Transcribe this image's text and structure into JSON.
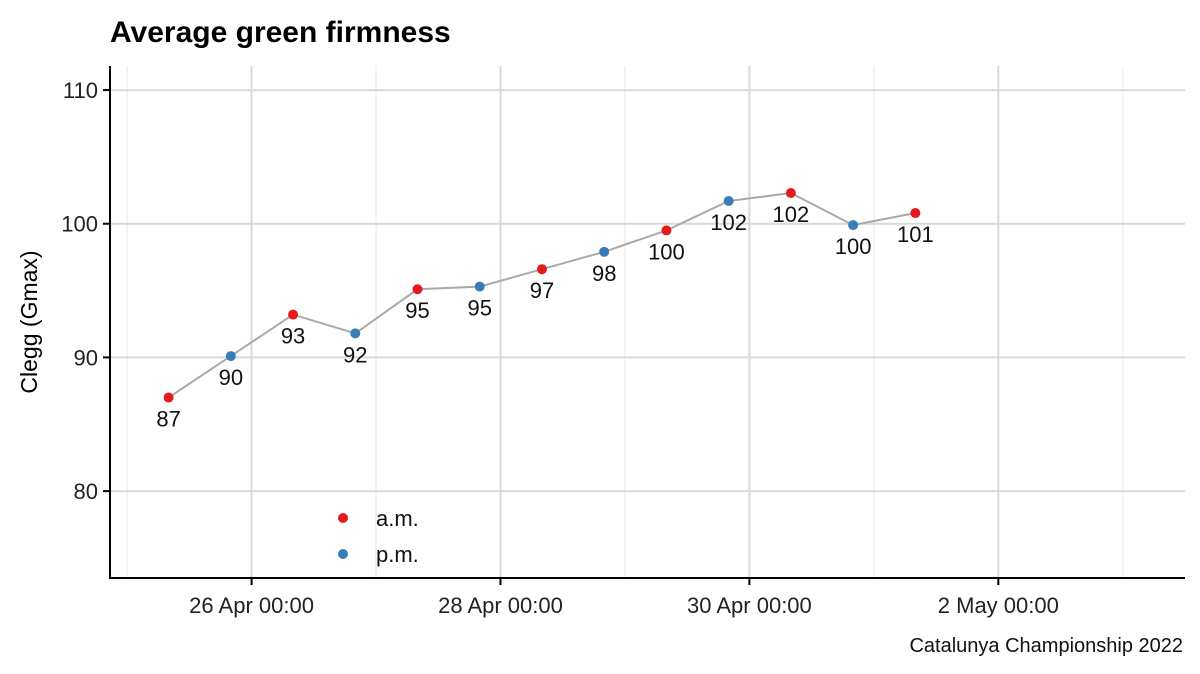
{
  "chart_data": {
    "type": "scatter",
    "title": "Average green firmness",
    "ylabel": "Clegg (Gmax)",
    "xlabel": "",
    "caption": "Catalunya Championship 2022",
    "ylim": [
      73.5,
      111.8
    ],
    "xlim": [
      "2022-04-24T20:42",
      "2022-05-03T12:00"
    ],
    "y_ticks": [
      80,
      90,
      100,
      110
    ],
    "y_tick_labels": [
      "80",
      "90",
      "100",
      "110"
    ],
    "x_ticks": [
      "2022-04-26T00:00",
      "2022-04-28T00:00",
      "2022-04-30T00:00",
      "2022-05-02T00:00"
    ],
    "x_tick_labels": [
      "26 Apr 00:00",
      "28 Apr 00:00",
      "30 Apr 00:00",
      "2 May 00:00"
    ],
    "x_minor_ticks": [
      "2022-04-25T00:00",
      "2022-04-27T00:00",
      "2022-04-29T00:00",
      "2022-05-01T00:00",
      "2022-05-03T00:00"
    ],
    "grid": true,
    "legend_position": "bottom-left",
    "connect_line": true,
    "line_color": "#a9a9a9",
    "series": [
      {
        "name": "a.m.",
        "color": "#e41a1c",
        "points": [
          {
            "x": "2022-04-25T08:00",
            "y": 87.0,
            "label": "87"
          },
          {
            "x": "2022-04-26T08:00",
            "y": 93.2,
            "label": "93"
          },
          {
            "x": "2022-04-27T08:00",
            "y": 95.1,
            "label": "95"
          },
          {
            "x": "2022-04-28T08:00",
            "y": 96.6,
            "label": "97"
          },
          {
            "x": "2022-04-29T08:00",
            "y": 99.5,
            "label": "100"
          },
          {
            "x": "2022-04-30T08:00",
            "y": 102.3,
            "label": "102"
          },
          {
            "x": "2022-05-01T08:00",
            "y": 100.8,
            "label": "101"
          }
        ]
      },
      {
        "name": "p.m.",
        "color": "#377eb8",
        "points": [
          {
            "x": "2022-04-25T20:00",
            "y": 90.1,
            "label": "90"
          },
          {
            "x": "2022-04-26T20:00",
            "y": 91.8,
            "label": "92"
          },
          {
            "x": "2022-04-27T20:00",
            "y": 95.3,
            "label": "95"
          },
          {
            "x": "2022-04-28T20:00",
            "y": 97.9,
            "label": "98"
          },
          {
            "x": "2022-04-29T20:00",
            "y": 101.7,
            "label": "102"
          },
          {
            "x": "2022-04-30T20:00",
            "y": 99.9,
            "label": "100"
          }
        ]
      }
    ]
  }
}
